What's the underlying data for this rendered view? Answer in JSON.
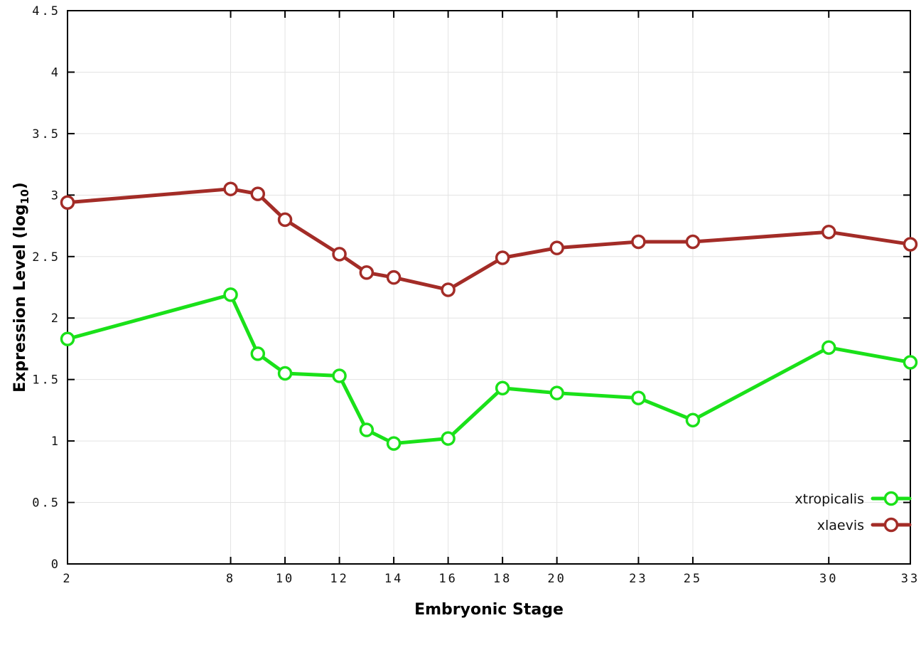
{
  "chart_data": {
    "type": "line",
    "title": "",
    "xlabel": "Embryonic Stage",
    "ylabel": "Expression Level (log10)",
    "ylabel_rich": {
      "main": "Expression Level (log",
      "sub": "10",
      "close": ")"
    },
    "xlim": [
      2,
      33
    ],
    "ylim": [
      0,
      4.5
    ],
    "grid": true,
    "legend_position": "bottom-right",
    "x": [
      2,
      8,
      9,
      10,
      12,
      13,
      14,
      16,
      18,
      20,
      23,
      25,
      30,
      33
    ],
    "series": [
      {
        "name": "xtropicalis",
        "color": "#1ae119",
        "values": [
          1.83,
          2.19,
          1.71,
          1.55,
          1.53,
          1.09,
          0.98,
          1.02,
          1.43,
          1.39,
          1.35,
          1.17,
          1.76,
          1.64
        ]
      },
      {
        "name": "xlaevis",
        "color": "#a32c27",
        "values": [
          2.94,
          3.05,
          3.01,
          2.8,
          2.52,
          2.37,
          2.33,
          2.23,
          2.49,
          2.57,
          2.62,
          2.62,
          2.7,
          2.6
        ]
      }
    ],
    "xticks": [
      {
        "v": 2,
        "label": "2"
      },
      {
        "v": 8,
        "label": "8"
      },
      {
        "v": 10,
        "label": "10"
      },
      {
        "v": 12,
        "label": "12"
      },
      {
        "v": 14,
        "label": "14"
      },
      {
        "v": 16,
        "label": "16"
      },
      {
        "v": 18,
        "label": "18"
      },
      {
        "v": 20,
        "label": "20"
      },
      {
        "v": 23,
        "label": "23"
      },
      {
        "v": 25,
        "label": "25"
      },
      {
        "v": 30,
        "label": "30"
      },
      {
        "v": 33,
        "label": "33"
      }
    ],
    "yticks": [
      {
        "v": 0,
        "label": "0"
      },
      {
        "v": 0.5,
        "label": "0.5"
      },
      {
        "v": 1,
        "label": "1"
      },
      {
        "v": 1.5,
        "label": "1.5"
      },
      {
        "v": 2,
        "label": "2"
      },
      {
        "v": 2.5,
        "label": "2.5"
      },
      {
        "v": 3,
        "label": "3"
      },
      {
        "v": 3.5,
        "label": "3.5"
      },
      {
        "v": 4,
        "label": "4"
      },
      {
        "v": 4.5,
        "label": "4.5"
      }
    ],
    "style": {
      "grid_color": "#e3e3e3",
      "border_color": "#000000",
      "tick_color": "#000000",
      "marker_fill": "#ffffff"
    }
  }
}
